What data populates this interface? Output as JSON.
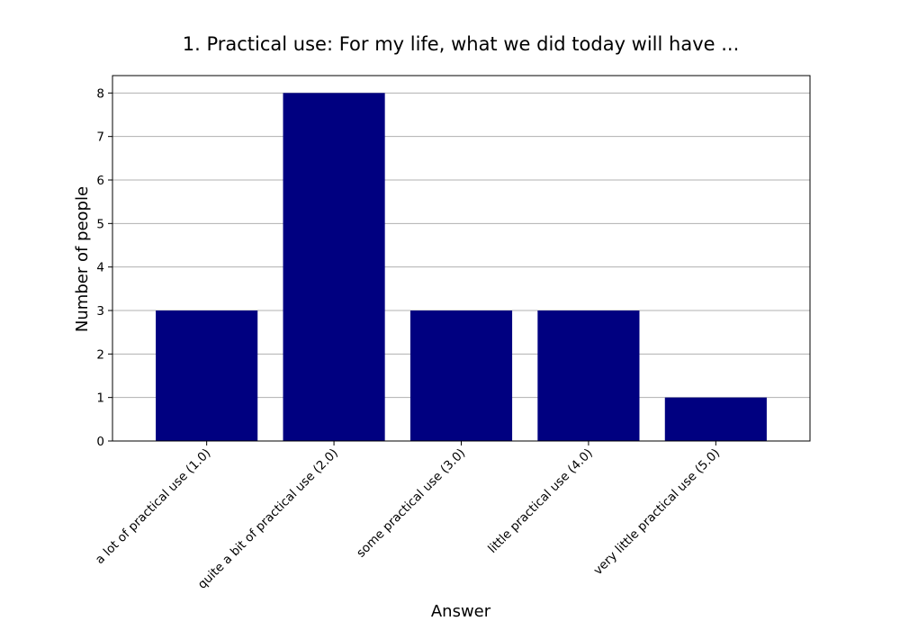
{
  "chart_data": {
    "type": "bar",
    "title": "1. Practical use: For my life, what we did today will have ...",
    "xlabel": "Answer",
    "ylabel": "Number of people",
    "categories": [
      "a lot of practical use (1.0)",
      "quite a bit of practical use (2.0)",
      "some practical use (3.0)",
      "little practical use (4.0)",
      "very little practical use (5.0)"
    ],
    "values": [
      3,
      8,
      3,
      3,
      1
    ],
    "ylim": [
      0,
      8.4
    ],
    "yticks": [
      0,
      1,
      2,
      3,
      4,
      5,
      6,
      7,
      8
    ],
    "grid": "horizontal",
    "bar_color": "#000080",
    "legend": "none"
  }
}
